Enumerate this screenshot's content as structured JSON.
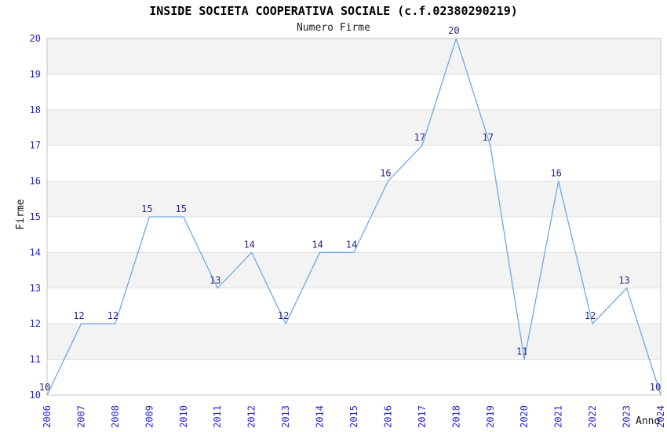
{
  "chart_data": {
    "type": "line",
    "title": "INSIDE SOCIETA COOPERATIVA SOCIALE (c.f.02380290219)",
    "subtitle": "Numero Firme",
    "xlabel": "Anno",
    "ylabel": "Firme",
    "categories": [
      "2006",
      "2007",
      "2008",
      "2009",
      "2010",
      "2011",
      "2012",
      "2013",
      "2014",
      "2015",
      "2016",
      "2017",
      "2018",
      "2019",
      "2020",
      "2021",
      "2022",
      "2023",
      "2024"
    ],
    "values": [
      10,
      12,
      12,
      15,
      15,
      13,
      14,
      12,
      14,
      14,
      16,
      17,
      20,
      17,
      11,
      16,
      12,
      13,
      10
    ],
    "ylim": [
      10,
      20
    ],
    "y_ticks": [
      10,
      11,
      12,
      13,
      14,
      15,
      16,
      17,
      18,
      19,
      20
    ],
    "grid": "horizontal-only",
    "legend": null,
    "data_labels_shown": true,
    "x_tick_rotation_deg": -90,
    "colors": {
      "line": "#72a8e2",
      "tick_label": "#2727cc",
      "data_label": "#2a2a80",
      "band_fill": "#f3f3f3",
      "grid_line": "#e0e0e0",
      "plot_border": "#c6c6c6",
      "title_text": "#000000",
      "axis_title_text": "#111111",
      "background": "#ffffff"
    }
  }
}
